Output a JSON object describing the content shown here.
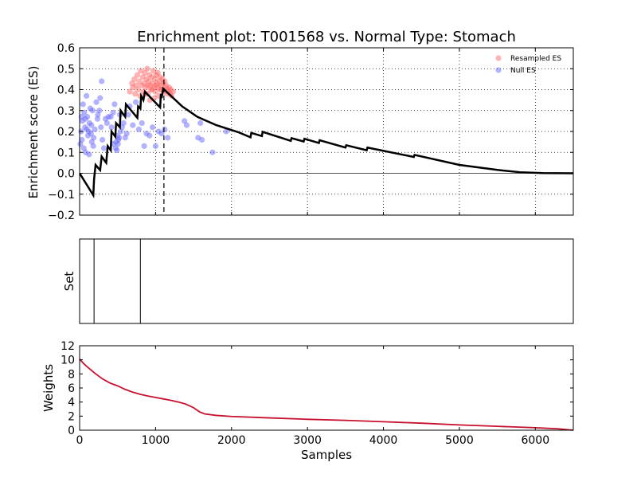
{
  "chart_data": [
    {
      "type": "line",
      "title": "Enrichment plot: T001568 vs. Normal Type: Stomach",
      "ylabel": "Enrichment score (ES)",
      "xlabel": "",
      "xlim": [
        0,
        6500
      ],
      "ylim": [
        -0.2,
        0.6
      ],
      "yticks": [
        "−0.2",
        "−0.1",
        "0.0",
        "0.1",
        "0.2",
        "0.3",
        "0.4",
        "0.5",
        "0.6"
      ],
      "xticks": [
        1000,
        2000,
        3000,
        4000,
        5000,
        6000
      ],
      "grid": true,
      "legend_position": "top-right",
      "zero_line": 0.0,
      "max_es_position": 1110,
      "series": [
        {
          "name": "",
          "color": "#000000",
          "points": [
            [
              0,
              0.0
            ],
            [
              180,
              -0.105
            ],
            [
              190,
              -0.03
            ],
            [
              210,
              0.04
            ],
            [
              270,
              0.015
            ],
            [
              290,
              0.08
            ],
            [
              350,
              0.05
            ],
            [
              370,
              0.13
            ],
            [
              410,
              0.11
            ],
            [
              420,
              0.2
            ],
            [
              470,
              0.175
            ],
            [
              480,
              0.24
            ],
            [
              530,
              0.22
            ],
            [
              540,
              0.3
            ],
            [
              600,
              0.27
            ],
            [
              610,
              0.33
            ],
            [
              760,
              0.265
            ],
            [
              770,
              0.32
            ],
            [
              800,
              0.31
            ],
            [
              810,
              0.37
            ],
            [
              840,
              0.35
            ],
            [
              860,
              0.39
            ],
            [
              1060,
              0.315
            ],
            [
              1070,
              0.38
            ],
            [
              1080,
              0.36
            ],
            [
              1100,
              0.405
            ],
            [
              1350,
              0.32
            ],
            [
              1550,
              0.27
            ],
            [
              1800,
              0.23
            ],
            [
              2100,
              0.195
            ],
            [
              2250,
              0.172
            ],
            [
              2260,
              0.193
            ],
            [
              2400,
              0.178
            ],
            [
              2410,
              0.198
            ],
            [
              2780,
              0.155
            ],
            [
              2790,
              0.168
            ],
            [
              2950,
              0.152
            ],
            [
              2960,
              0.165
            ],
            [
              3150,
              0.145
            ],
            [
              3160,
              0.158
            ],
            [
              3500,
              0.123
            ],
            [
              3510,
              0.134
            ],
            [
              3780,
              0.11
            ],
            [
              3790,
              0.123
            ],
            [
              4400,
              0.078
            ],
            [
              4410,
              0.088
            ],
            [
              5000,
              0.04
            ],
            [
              5500,
              0.016
            ],
            [
              5800,
              0.005
            ],
            [
              6100,
              0.001
            ],
            [
              6500,
              0.0
            ]
          ]
        },
        {
          "name": "Resampled ES",
          "color": "#ff6666",
          "points": [
            [
              660,
              0.39
            ],
            [
              690,
              0.43
            ],
            [
              700,
              0.41
            ],
            [
              720,
              0.45
            ],
            [
              730,
              0.38
            ],
            [
              745,
              0.42
            ],
            [
              760,
              0.47
            ],
            [
              770,
              0.4
            ],
            [
              785,
              0.44
            ],
            [
              795,
              0.37
            ],
            [
              805,
              0.49
            ],
            [
              815,
              0.42
            ],
            [
              830,
              0.46
            ],
            [
              840,
              0.39
            ],
            [
              850,
              0.43
            ],
            [
              860,
              0.48
            ],
            [
              870,
              0.41
            ],
            [
              880,
              0.45
            ],
            [
              890,
              0.5
            ],
            [
              900,
              0.38
            ],
            [
              910,
              0.44
            ],
            [
              920,
              0.47
            ],
            [
              930,
              0.42
            ],
            [
              940,
              0.4
            ],
            [
              950,
              0.46
            ],
            [
              960,
              0.43
            ],
            [
              970,
              0.49
            ],
            [
              980,
              0.41
            ],
            [
              990,
              0.45
            ],
            [
              1000,
              0.39
            ],
            [
              1010,
              0.47
            ],
            [
              1020,
              0.43
            ],
            [
              1030,
              0.48
            ],
            [
              1040,
              0.41
            ],
            [
              1050,
              0.44
            ],
            [
              1060,
              0.46
            ],
            [
              1070,
              0.42
            ],
            [
              1080,
              0.4
            ],
            [
              1090,
              0.45
            ],
            [
              1100,
              0.43
            ],
            [
              1110,
              0.39
            ],
            [
              1120,
              0.44
            ],
            [
              1130,
              0.41
            ],
            [
              1140,
              0.42
            ],
            [
              1150,
              0.38
            ],
            [
              1160,
              0.4
            ],
            [
              1170,
              0.39
            ],
            [
              1180,
              0.41
            ],
            [
              1190,
              0.38
            ],
            [
              1200,
              0.4
            ],
            [
              1210,
              0.37
            ],
            [
              1230,
              0.39
            ],
            [
              870,
              0.38
            ],
            [
              895,
              0.42
            ],
            [
              955,
              0.4
            ],
            [
              1005,
              0.42
            ],
            [
              1045,
              0.37
            ],
            [
              925,
              0.35
            ],
            [
              985,
              0.36
            ],
            [
              1065,
              0.4
            ]
          ]
        },
        {
          "name": "Null ES",
          "color": "#6666ff",
          "points": [
            [
              10,
              0.14
            ],
            [
              20,
              0.2
            ],
            [
              25,
              0.27
            ],
            [
              35,
              0.25
            ],
            [
              45,
              0.33
            ],
            [
              60,
              0.29
            ],
            [
              70,
              0.22
            ],
            [
              80,
              0.1
            ],
            [
              90,
              0.37
            ],
            [
              100,
              0.27
            ],
            [
              110,
              0.18
            ],
            [
              120,
              0.2
            ],
            [
              130,
              0.24
            ],
            [
              140,
              0.31
            ],
            [
              150,
              0.19
            ],
            [
              160,
              0.15
            ],
            [
              170,
              0.3
            ],
            [
              180,
              0.13
            ],
            [
              200,
              0.21
            ],
            [
              220,
              0.34
            ],
            [
              240,
              0.28
            ],
            [
              260,
              0.3
            ],
            [
              270,
              0.36
            ],
            [
              280,
              0.22
            ],
            [
              290,
              0.44
            ],
            [
              300,
              0.16
            ],
            [
              320,
              0.12
            ],
            [
              340,
              0.26
            ],
            [
              360,
              0.24
            ],
            [
              380,
              0.27
            ],
            [
              410,
              0.27
            ],
            [
              420,
              0.22
            ],
            [
              440,
              0.29
            ],
            [
              460,
              0.33
            ],
            [
              480,
              0.15
            ],
            [
              490,
              0.11
            ],
            [
              500,
              0.18
            ],
            [
              510,
              0.16
            ],
            [
              520,
              0.17
            ],
            [
              540,
              0.2
            ],
            [
              560,
              0.22
            ],
            [
              580,
              0.24
            ],
            [
              600,
              0.17
            ],
            [
              620,
              0.19
            ],
            [
              640,
              0.28
            ],
            [
              660,
              0.32
            ],
            [
              700,
              0.23
            ],
            [
              740,
              0.34
            ],
            [
              780,
              0.21
            ],
            [
              820,
              0.24
            ],
            [
              850,
              0.13
            ],
            [
              880,
              0.19
            ],
            [
              920,
              0.18
            ],
            [
              960,
              0.22
            ],
            [
              1000,
              0.13
            ],
            [
              1040,
              0.2
            ],
            [
              1080,
              0.19
            ],
            [
              1120,
              0.21
            ],
            [
              1160,
              0.17
            ],
            [
              1380,
              0.25
            ],
            [
              1410,
              0.23
            ],
            [
              1560,
              0.17
            ],
            [
              1590,
              0.24
            ],
            [
              1610,
              0.16
            ],
            [
              1750,
              0.1
            ],
            [
              1930,
              0.2
            ],
            [
              30,
              0.16
            ],
            [
              55,
              0.12
            ],
            [
              75,
              0.26
            ],
            [
              95,
              0.21
            ],
            [
              125,
              0.09
            ],
            [
              155,
              0.23
            ],
            [
              185,
              0.17
            ],
            [
              235,
              0.26
            ],
            [
              445,
              0.14
            ],
            [
              475,
              0.12
            ],
            [
              505,
              0.14
            ],
            [
              530,
              0.28
            ]
          ]
        }
      ]
    },
    {
      "type": "barcode",
      "title": "",
      "ylabel": "Set",
      "xlim": [
        0,
        6500
      ],
      "hits": [
        190,
        800
      ]
    },
    {
      "type": "line",
      "title": "",
      "ylabel": "Weights",
      "xlabel": "Samples",
      "xlim": [
        0,
        6500
      ],
      "ylim": [
        0,
        12
      ],
      "yticks": [
        "0",
        "2",
        "4",
        "6",
        "8",
        "10",
        "12"
      ],
      "xticks": [
        0,
        1000,
        2000,
        3000,
        4000,
        5000,
        6000
      ],
      "series": [
        {
          "name": "",
          "color": "#c8102e",
          "points": [
            [
              0,
              10.1
            ],
            [
              50,
              9.5
            ],
            [
              100,
              9.0
            ],
            [
              200,
              8.1
            ],
            [
              300,
              7.3
            ],
            [
              400,
              6.7
            ],
            [
              500,
              6.3
            ],
            [
              600,
              5.8
            ],
            [
              700,
              5.4
            ],
            [
              800,
              5.1
            ],
            [
              900,
              4.85
            ],
            [
              1000,
              4.65
            ],
            [
              1100,
              4.45
            ],
            [
              1200,
              4.25
            ],
            [
              1300,
              4.0
            ],
            [
              1400,
              3.7
            ],
            [
              1500,
              3.2
            ],
            [
              1580,
              2.6
            ],
            [
              1650,
              2.3
            ],
            [
              1800,
              2.1
            ],
            [
              2000,
              1.95
            ],
            [
              2500,
              1.75
            ],
            [
              3000,
              1.55
            ],
            [
              3500,
              1.4
            ],
            [
              4000,
              1.2
            ],
            [
              4500,
              1.0
            ],
            [
              5000,
              0.75
            ],
            [
              5500,
              0.55
            ],
            [
              6000,
              0.35
            ],
            [
              6300,
              0.2
            ],
            [
              6500,
              0.0
            ]
          ]
        }
      ]
    }
  ]
}
